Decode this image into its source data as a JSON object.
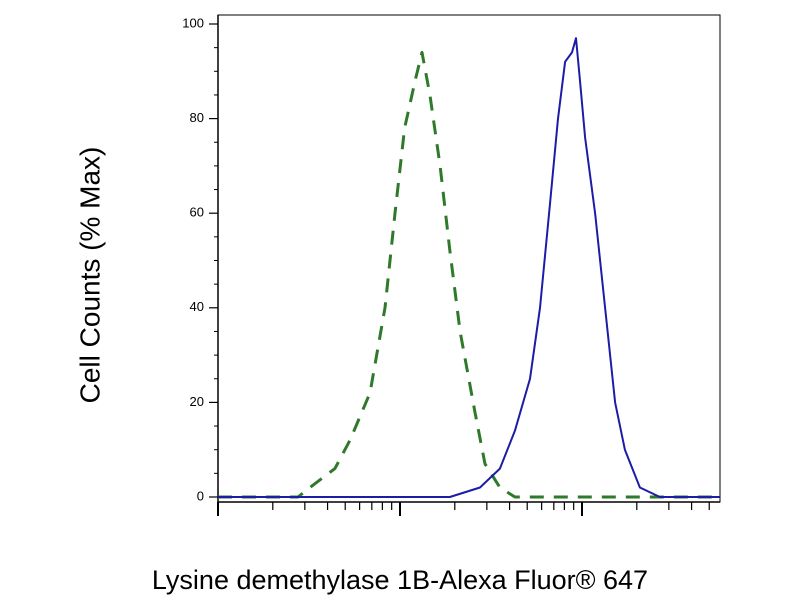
{
  "chart_data": {
    "type": "line",
    "ylabel": "Cell Counts (% Max)",
    "xlabel": "Lysine demethylase 1B-Alexa Fluor® 647",
    "xscale": "log",
    "xlim": [
      1,
      573
    ],
    "xticks": [
      1,
      2,
      3,
      4,
      5,
      6,
      7,
      8,
      9,
      10,
      20,
      30,
      40,
      50,
      60,
      70,
      80,
      90,
      100,
      200,
      300,
      400,
      500
    ],
    "ylim": [
      0,
      100
    ],
    "yticks": [
      0,
      20,
      40,
      60,
      80,
      100
    ],
    "yminorticks": [
      5,
      10,
      15,
      25,
      30,
      35,
      45,
      50,
      55,
      65,
      70,
      75,
      85,
      90,
      95
    ],
    "series": [
      {
        "color": "#2f7a2a",
        "style": "dashed",
        "x": [
          1,
          1.7,
          2.75,
          3.2,
          4.39,
          5.31,
          6.84,
          8.27,
          9.39,
          10.6,
          12.1,
          13.2,
          14.6,
          16.6,
          18.8,
          21.4,
          25.8,
          29.3,
          35.4,
          42.8,
          75.7,
          208,
          573
        ],
        "values": [
          0,
          0,
          0,
          2,
          6,
          12,
          22,
          40,
          60,
          78,
          88,
          94,
          85,
          70,
          52,
          35,
          18,
          7,
          2,
          0,
          0,
          0,
          0
        ]
      },
      {
        "color": "#1c1ca6",
        "style": "solid",
        "x": [
          1,
          5.31,
          18.8,
          27.5,
          35.4,
          42.8,
          51.8,
          58.8,
          66.7,
          73.8,
          80.7,
          88.1,
          92.7,
          97.5,
          104,
          118,
          134,
          152,
          172,
          208,
          268,
          573
        ],
        "values": [
          0,
          0,
          0,
          2,
          6,
          14,
          25,
          40,
          62,
          80,
          92,
          94,
          97,
          88,
          76,
          60,
          40,
          20,
          10,
          2,
          0,
          0
        ]
      }
    ]
  }
}
